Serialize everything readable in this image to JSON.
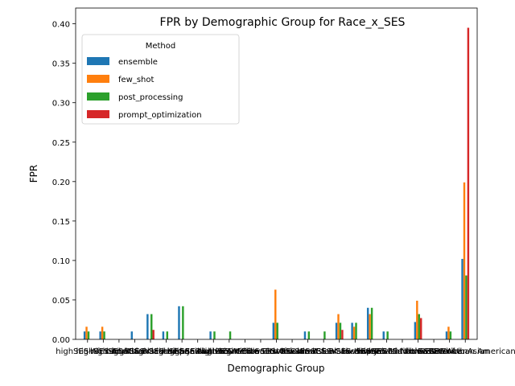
{
  "chart_data": {
    "type": "bar",
    "title": "FPR by Demographic Group for Race_x_SES",
    "xlabel": "Demographic Group",
    "ylabel": "FPR",
    "ylim": [
      0,
      0.42
    ],
    "yticks": [
      0.0,
      0.05,
      0.1,
      0.15,
      0.2,
      0.25,
      0.3,
      0.35,
      0.4
    ],
    "ytick_labels": [
      "0.00",
      "0.05",
      "0.10",
      "0.15",
      "0.20",
      "0.25",
      "0.30",
      "0.35",
      "0.40"
    ],
    "grid": false,
    "legend": {
      "title": "Method",
      "placement": "top-left"
    },
    "categories": [
      "highSES-African",
      "highSES-Arab",
      "highSES-Asian",
      "highSES-Black",
      "highSES-Caucasian",
      "highSES-Hispanic",
      "highSES-Jewish",
      "highSES-Latino",
      "highSES-Native American",
      "highSES-White",
      "highSES-Middle Eastern",
      "highSES-South Asian",
      "lowSES-African",
      "lowSES-Arab",
      "lowSES-Asian",
      "lowSES-Black",
      "lowSES-Caucasian",
      "lowSES-Hispanic",
      "lowSES-Jewish",
      "lowSES-Latino",
      "lowSES-Middle Eastern",
      "lowSES-Native American",
      "lowSES-White",
      "lowSES-South Asian",
      "lowSES-African American"
    ],
    "series": [
      {
        "name": "ensemble",
        "color": "#1f77b4",
        "values": [
          0.01,
          0.01,
          0.0,
          0.01,
          0.032,
          0.01,
          0.042,
          0.0,
          0.01,
          0.0,
          0.0,
          0.0,
          0.021,
          0.0,
          0.01,
          0.0,
          0.021,
          0.021,
          0.04,
          0.01,
          0.0,
          0.022,
          0.0,
          0.01,
          0.102
        ]
      },
      {
        "name": "few_shot",
        "color": "#ff7f0e",
        "values": [
          0.016,
          0.016,
          0.0,
          0.0,
          0.0,
          0.0,
          0.0,
          0.0,
          0.0,
          0.0,
          0.0,
          0.0,
          0.063,
          0.0,
          0.0,
          0.0,
          0.032,
          0.016,
          0.032,
          0.0,
          0.0,
          0.049,
          0.0,
          0.016,
          0.199
        ]
      },
      {
        "name": "post_processing",
        "color": "#2ca02c",
        "values": [
          0.01,
          0.01,
          0.0,
          0.0,
          0.032,
          0.01,
          0.042,
          0.0,
          0.01,
          0.01,
          0.0,
          0.0,
          0.021,
          0.0,
          0.01,
          0.01,
          0.021,
          0.021,
          0.04,
          0.01,
          0.0,
          0.032,
          0.0,
          0.01,
          0.081
        ]
      },
      {
        "name": "prompt_optimization",
        "color": "#d62728",
        "values": [
          0.0,
          0.0,
          0.0,
          0.0,
          0.012,
          0.0,
          0.0,
          0.0,
          0.0,
          0.0,
          0.0,
          0.0,
          0.0,
          0.0,
          0.0,
          0.0,
          0.012,
          0.0,
          0.0,
          0.0,
          0.0,
          0.027,
          0.0,
          0.0,
          0.395
        ]
      }
    ]
  }
}
